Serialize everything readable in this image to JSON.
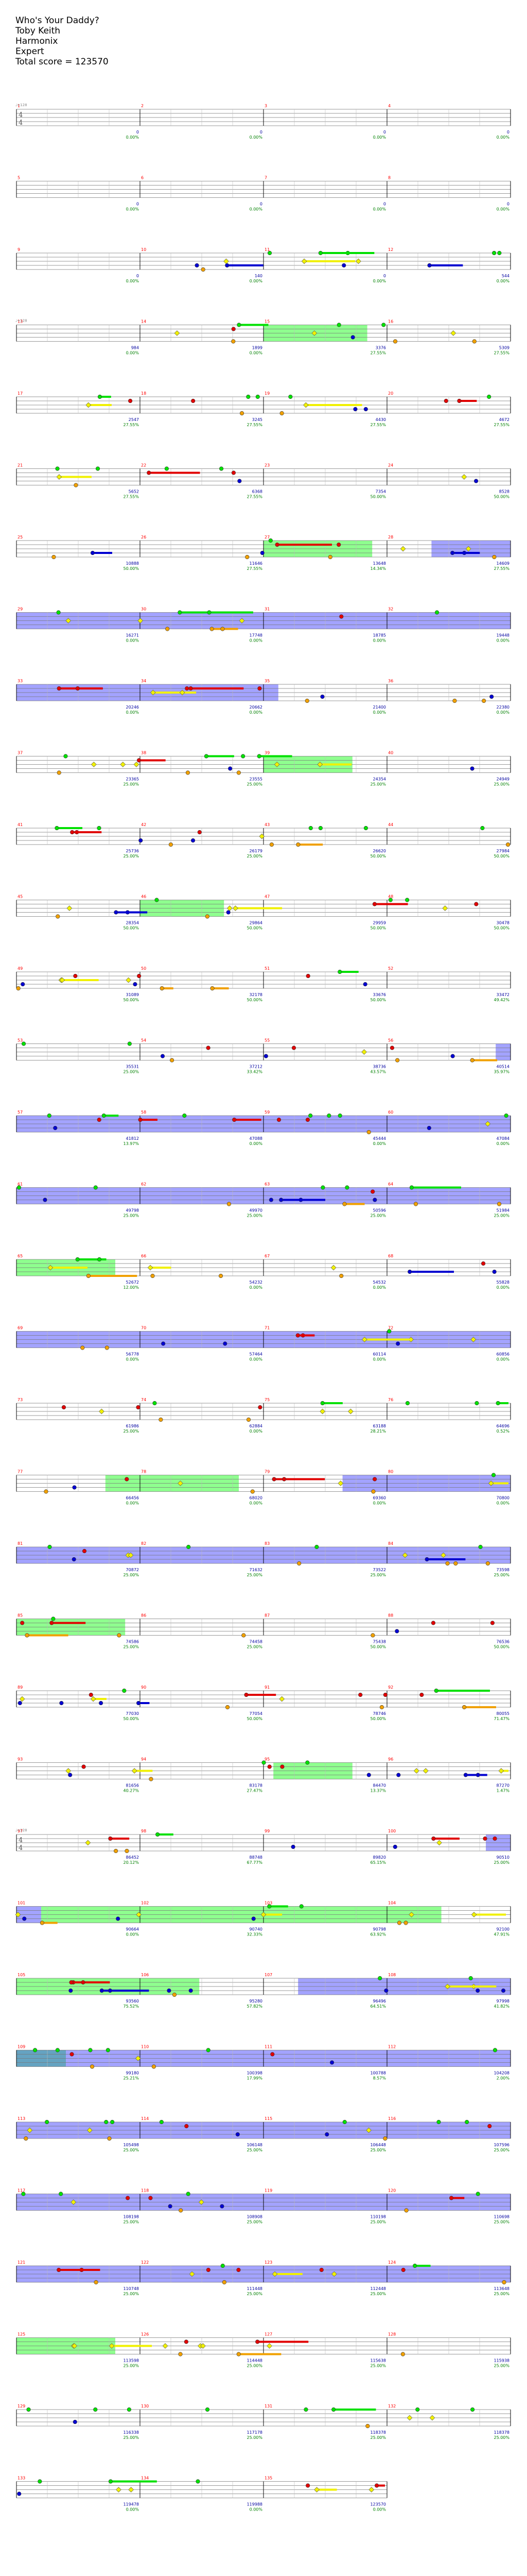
{
  "song": {
    "title": "Who's Your Daddy?",
    "artist": "Toby Keith",
    "instrument": "Harmonix",
    "difficulty": "Expert",
    "total_score_label": "Total score = 123570"
  },
  "tempo_label": "♩=128",
  "time_signature": "4/4",
  "colors": {
    "green": "#00e000",
    "red": "#e00000",
    "yellow": "#f0f000",
    "blue": "#0000d0",
    "orange": "#f0a000",
    "star_power": "#33ff33",
    "overdrive": "#3333ff",
    "measure_number": "#ff0000",
    "score_text": "#0000a0",
    "percent_text": "#008000",
    "staff_line": "#777777"
  },
  "rows": [
    {
      "measures": [
        1,
        2,
        3,
        4
      ],
      "scores": [
        "0",
        "0",
        "0",
        "0"
      ],
      "pcts": [
        "0.00%",
        "0.00%",
        "0.00%",
        "0.00%"
      ]
    },
    {
      "measures": [
        5,
        6,
        7,
        8
      ],
      "scores": [
        "0",
        "0",
        "0",
        "0"
      ],
      "pcts": [
        "0.00%",
        "0.00%",
        "0.00%",
        "0.00%"
      ]
    },
    {
      "measures": [
        9,
        10,
        11,
        12
      ],
      "scores": [
        "0",
        "140",
        "0",
        "544"
      ],
      "pcts": [
        "0.00%",
        "0.00%",
        "0.00%",
        "0.00%"
      ]
    },
    {
      "measures": [
        13,
        14,
        15,
        16
      ],
      "scores": [
        "984",
        "1899",
        "3376",
        "5309"
      ],
      "pcts": [
        "0.00%",
        "0.00%",
        "27.55%",
        "27.55%"
      ]
    },
    {
      "measures": [
        17,
        18,
        19,
        20
      ],
      "scores": [
        "2547",
        "3245",
        "4430",
        "4672"
      ],
      "pcts": [
        "27.55%",
        "27.55%",
        "27.55%",
        "27.55%"
      ]
    },
    {
      "measures": [
        21,
        22,
        23,
        24
      ],
      "scores": [
        "5652",
        "6368",
        "7354",
        "8528"
      ],
      "pcts": [
        "27.55%",
        "27.55%",
        "50.00%",
        "50.00%"
      ]
    },
    {
      "measures": [
        25,
        26,
        27,
        28
      ],
      "scores": [
        "10888",
        "11646",
        "13648",
        "14609"
      ],
      "pcts": [
        "50.00%",
        "27.55%",
        "14.34%",
        "27.55%"
      ]
    },
    {
      "measures": [
        29,
        30,
        31,
        32
      ],
      "scores": [
        "16271",
        "17748",
        "18785",
        "19448"
      ],
      "pcts": [
        "0.00%",
        "0.00%",
        "0.00%",
        "0.00%"
      ]
    },
    {
      "measures": [
        33,
        34,
        35,
        36
      ],
      "scores": [
        "20246",
        "20662",
        "21400",
        "22380"
      ],
      "pcts": [
        "0.00%",
        "0.00%",
        "0.00%",
        "0.00%"
      ]
    },
    {
      "measures": [
        37,
        38,
        39,
        40
      ],
      "scores": [
        "23365",
        "23555",
        "24354",
        "24949"
      ],
      "pcts": [
        "25.00%",
        "25.00%",
        "25.00%",
        "25.00%"
      ]
    },
    {
      "measures": [
        41,
        42,
        43,
        44
      ],
      "scores": [
        "25736",
        "26179",
        "26620",
        "27984"
      ],
      "pcts": [
        "25.00%",
        "25.00%",
        "50.00%",
        "50.00%"
      ]
    },
    {
      "measures": [
        45,
        46,
        47,
        48
      ],
      "scores": [
        "28354",
        "29864",
        "29959",
        "30478"
      ],
      "pcts": [
        "50.00%",
        "50.00%",
        "50.00%",
        "50.00%"
      ]
    },
    {
      "measures": [
        49,
        50,
        51,
        52
      ],
      "scores": [
        "31089",
        "32178",
        "33676",
        "33472"
      ],
      "pcts": [
        "50.00%",
        "50.00%",
        "50.00%",
        "49.42%"
      ]
    },
    {
      "measures": [
        53,
        54,
        55,
        56
      ],
      "scores": [
        "35531",
        "37212",
        "38736",
        "40514"
      ],
      "pcts": [
        "25.00%",
        "33.42%",
        "43.57%",
        "35.97%"
      ]
    },
    {
      "measures": [
        57,
        58,
        59,
        60
      ],
      "scores": [
        "41812",
        "47088",
        "45444",
        "47084"
      ],
      "pcts": [
        "13.97%",
        "0.00%",
        "0.00%",
        "0.00%"
      ]
    },
    {
      "measures": [
        61,
        62,
        63,
        64
      ],
      "scores": [
        "49798",
        "49970",
        "50596",
        "51984"
      ],
      "pcts": [
        "25.00%",
        "25.00%",
        "25.00%",
        "25.00%"
      ]
    },
    {
      "measures": [
        65,
        66,
        67,
        68
      ],
      "scores": [
        "52672",
        "54232",
        "54532",
        "55828"
      ],
      "pcts": [
        "12.00%",
        "0.00%",
        "0.00%",
        "0.00%"
      ]
    },
    {
      "measures": [
        69,
        70,
        71,
        72
      ],
      "scores": [
        "56778",
        "57464",
        "60114",
        "60856"
      ],
      "pcts": [
        "0.00%",
        "0.00%",
        "0.00%",
        "0.00%"
      ]
    },
    {
      "measures": [
        73,
        74,
        75,
        76
      ],
      "scores": [
        "61986",
        "62884",
        "63188",
        "64696"
      ],
      "pcts": [
        "25.00%",
        "0.00%",
        "28.21%",
        "0.52%"
      ]
    },
    {
      "measures": [
        77,
        78,
        79,
        80
      ],
      "scores": [
        "66456",
        "68020",
        "69360",
        "70800"
      ],
      "pcts": [
        "0.00%",
        "0.00%",
        "0.00%",
        "0.00%"
      ]
    },
    {
      "measures": [
        81,
        82,
        83,
        84
      ],
      "scores": [
        "70872",
        "71632",
        "73522",
        "73598"
      ],
      "pcts": [
        "25.00%",
        "25.00%",
        "25.00%",
        "25.00%"
      ]
    },
    {
      "measures": [
        85,
        86,
        87,
        88
      ],
      "scores": [
        "74586",
        "74458",
        "75438",
        "76536"
      ],
      "pcts": [
        "25.00%",
        "25.00%",
        "50.00%",
        "50.00%"
      ]
    },
    {
      "measures": [
        89,
        90,
        91,
        92
      ],
      "scores": [
        "77030",
        "77054",
        "78746",
        "80055"
      ],
      "pcts": [
        "50.00%",
        "50.00%",
        "50.00%",
        "71.47%"
      ]
    },
    {
      "measures": [
        93,
        94,
        95,
        96
      ],
      "scores": [
        "81656",
        "83178",
        "84470",
        "87270"
      ],
      "pcts": [
        "40.27%",
        "27.47%",
        "13.37%",
        "1.47%"
      ]
    },
    {
      "measures": [
        97,
        98,
        99,
        100
      ],
      "scores": [
        "86452",
        "88748",
        "89820",
        "90510"
      ],
      "pcts": [
        "20.12%",
        "67.77%",
        "65.15%",
        "25.00%"
      ]
    },
    {
      "measures": [
        101,
        102,
        103,
        104
      ],
      "scores": [
        "90664",
        "90740",
        "90798",
        "92100"
      ],
      "pcts": [
        "0.00%",
        "32.33%",
        "63.92%",
        "47.91%"
      ]
    },
    {
      "measures": [
        105,
        106,
        107,
        108
      ],
      "scores": [
        "93560",
        "95280",
        "96496",
        "97998"
      ],
      "pcts": [
        "75.52%",
        "57.82%",
        "64.51%",
        "41.82%"
      ]
    },
    {
      "measures": [
        109,
        110,
        111,
        112
      ],
      "scores": [
        "99180",
        "100398",
        "100788",
        "104208"
      ],
      "pcts": [
        "25.21%",
        "17.99%",
        "8.57%",
        "2.00%"
      ]
    },
    {
      "measures": [
        113,
        114,
        115,
        116
      ],
      "scores": [
        "105498",
        "106148",
        "106448",
        "107596"
      ],
      "pcts": [
        "25.00%",
        "25.00%",
        "25.00%",
        "25.00%"
      ]
    },
    {
      "measures": [
        117,
        118,
        119,
        120
      ],
      "scores": [
        "108198",
        "108908",
        "110198",
        "110698"
      ],
      "pcts": [
        "25.00%",
        "25.00%",
        "25.00%",
        "25.00%"
      ]
    },
    {
      "measures": [
        121,
        122,
        123,
        124
      ],
      "scores": [
        "110748",
        "111448",
        "112448",
        "113648"
      ],
      "pcts": [
        "25.00%",
        "25.00%",
        "25.00%",
        "25.00%"
      ]
    },
    {
      "measures": [
        125,
        126,
        127,
        128
      ],
      "scores": [
        "113598",
        "114448",
        "115638",
        "115938"
      ],
      "pcts": [
        "25.00%",
        "25.00%",
        "25.00%",
        "25.00%"
      ]
    },
    {
      "measures": [
        129,
        130,
        131,
        132
      ],
      "scores": [
        "116338",
        "117178",
        "118378",
        "118378"
      ],
      "pcts": [
        "25.00%",
        "25.00%",
        "25.00%",
        "25.00%"
      ]
    },
    {
      "measures": [
        133,
        134,
        135
      ],
      "scores": [
        "119478",
        "119988",
        "123570"
      ],
      "pcts": [
        "0.00%",
        "0.00%",
        "0.00%"
      ]
    }
  ],
  "rows_special": {
    "24": {
      "blocks": [
        [
          0.0,
          0.15,
          "sp"
        ],
        [
          0.15,
          1.0,
          "star"
        ]
      ]
    }
  }
}
